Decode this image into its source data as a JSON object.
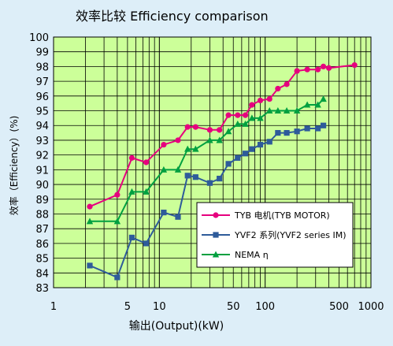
{
  "chart_data": {
    "type": "line",
    "title": "效率比较    Efficiency comparison",
    "xlabel": "输出(Output)(kW)",
    "ylabel": "效率（Efficiency）(%)",
    "x_scale": "log",
    "xlim": [
      1,
      1000
    ],
    "ylim": [
      83,
      100
    ],
    "x_ticks": [
      1,
      5,
      10,
      50,
      100,
      500,
      1000
    ],
    "y_ticks": [
      83,
      84,
      85,
      86,
      87,
      88,
      89,
      90,
      91,
      92,
      93,
      94,
      95,
      96,
      97,
      98,
      99,
      100
    ],
    "grid": true,
    "legend_position": "lower-right",
    "background_color": "#ddeef8",
    "plot_background_color": "#ccff99",
    "series": [
      {
        "name": "TYB 电机(TYB MOTOR)",
        "color": "#e6007e",
        "marker": "circle",
        "x": [
          2.2,
          4,
          5.5,
          7.5,
          11,
          15,
          18.5,
          22,
          30,
          37,
          45,
          55,
          65,
          75,
          90,
          110,
          132,
          160,
          200,
          250,
          315,
          355,
          400,
          700
        ],
        "values": [
          88.5,
          89.3,
          91.8,
          91.5,
          92.7,
          93.0,
          93.9,
          93.9,
          93.7,
          93.7,
          94.7,
          94.7,
          94.7,
          95.4,
          95.7,
          95.8,
          96.5,
          96.8,
          97.7,
          97.8,
          97.8,
          98.0,
          97.9,
          98.1
        ]
      },
      {
        "name": "YVF2 系列(YVF2 series IM)",
        "color": "#2e5b9a",
        "marker": "square",
        "x": [
          2.2,
          4,
          5.5,
          7.5,
          11,
          15,
          18.5,
          22,
          30,
          37,
          45,
          55,
          65,
          75,
          90,
          110,
          132,
          160,
          200,
          250,
          315,
          355
        ],
        "values": [
          84.5,
          83.7,
          86.4,
          86.0,
          88.1,
          87.8,
          90.6,
          90.5,
          90.1,
          90.4,
          91.4,
          91.8,
          92.1,
          92.4,
          92.7,
          92.9,
          93.5,
          93.5,
          93.6,
          93.8,
          93.8,
          94.0
        ]
      },
      {
        "name": "NEMA η",
        "color": "#00a040",
        "marker": "triangle",
        "x": [
          2.2,
          4,
          5.5,
          7.5,
          11,
          15,
          18.5,
          22,
          30,
          37,
          45,
          55,
          65,
          75,
          90,
          110,
          132,
          160,
          200,
          250,
          315,
          355
        ],
        "values": [
          87.5,
          87.5,
          89.5,
          89.5,
          91.0,
          91.0,
          92.4,
          92.4,
          93.0,
          93.0,
          93.6,
          94.1,
          94.1,
          94.5,
          94.5,
          95.0,
          95.0,
          95.0,
          95.0,
          95.4,
          95.4,
          95.8
        ]
      }
    ]
  }
}
